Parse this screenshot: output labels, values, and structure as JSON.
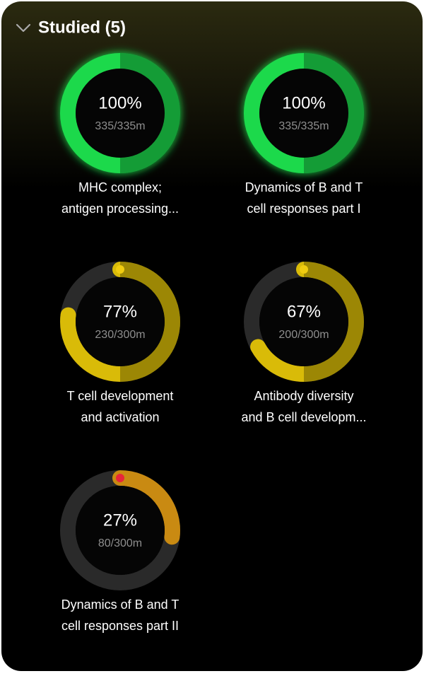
{
  "header": {
    "title": "Studied (5)"
  },
  "items": [
    {
      "percent": 100,
      "percent_label": "100%",
      "time": "335/335m",
      "title_lines": [
        "MHC complex;",
        "antigen processing..."
      ],
      "color": "#1ed94c",
      "start_color": "#1ed94c"
    },
    {
      "percent": 100,
      "percent_label": "100%",
      "time": "335/335m",
      "title_lines": [
        "Dynamics of B and T",
        "cell responses part I"
      ],
      "color": "#1ed94c",
      "start_color": "#1ed94c"
    },
    {
      "percent": 77,
      "percent_label": "77%",
      "time": "230/300m",
      "title_lines": [
        "T cell development",
        "and activation"
      ],
      "color": "#d9bb08",
      "start_color": "#f0cc10"
    },
    {
      "percent": 67,
      "percent_label": "67%",
      "time": "200/300m",
      "title_lines": [
        "Antibody diversity",
        "and B cell developm..."
      ],
      "color": "#d9bb08",
      "start_color": "#f0cc10"
    },
    {
      "percent": 27,
      "percent_label": "27%",
      "time": "80/300m",
      "title_lines": [
        "Dynamics of B and T",
        "cell responses part II"
      ],
      "color": "#c98a12",
      "start_color": "#e8253a"
    }
  ]
}
